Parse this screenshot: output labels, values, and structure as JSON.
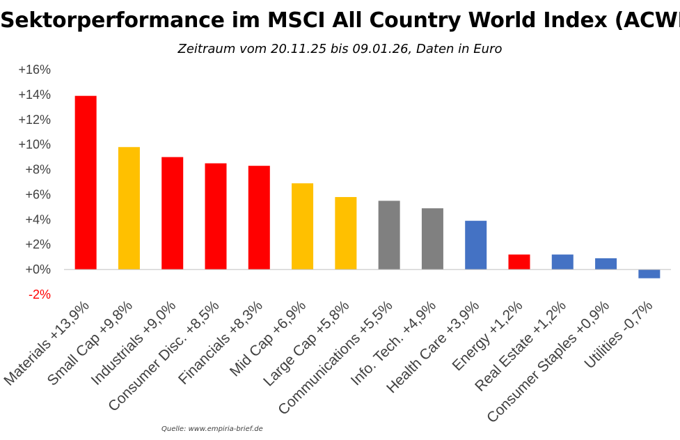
{
  "chart_data": {
    "type": "bar",
    "title": "Sektorperformance im MSCI All Country World Index (ACWI)",
    "subtitle": "Zeitraum vom 20.11.25 bis 09.01.26, Daten in Euro",
    "source": "Quelle: www.empiria-brief.de",
    "ylim": [
      -2,
      16
    ],
    "yticks": [
      -2,
      0,
      2,
      4,
      6,
      8,
      10,
      12,
      14,
      16
    ],
    "ytick_labels": [
      "-2%",
      "+0%",
      "+2%",
      "+4%",
      "+6%",
      "+8%",
      "+10%",
      "+12%",
      "+14%",
      "+16%"
    ],
    "grid": false,
    "categories": [
      "Materials +13,9%",
      "Small Cap +9,8%",
      "Industrials +9,0%",
      "Consumer Disc. +8,5%",
      "Financials +8,3%",
      "Mid Cap +6,9%",
      "Large Cap +5,8%",
      "Communications +5,5%",
      "Info. Tech. +4,9%",
      "Health Care +3,9%",
      "Energy +1,2%",
      "Real Estate +1,2%",
      "Consumer Staples +0,9%",
      "Utilities -0,7%"
    ],
    "values": [
      13.9,
      9.8,
      9.0,
      8.5,
      8.3,
      6.9,
      5.8,
      5.5,
      4.9,
      3.9,
      1.2,
      1.2,
      0.9,
      -0.7
    ],
    "colors": [
      "#ff0000",
      "#ffc000",
      "#ff0000",
      "#ff0000",
      "#ff0000",
      "#ffc000",
      "#ffc000",
      "#808080",
      "#808080",
      "#4472c4",
      "#ff0000",
      "#4472c4",
      "#4472c4",
      "#4472c4"
    ],
    "tick_color": "#404040",
    "negative_tick_color": "#ff0000",
    "axis_color": "#bfbfbf"
  }
}
